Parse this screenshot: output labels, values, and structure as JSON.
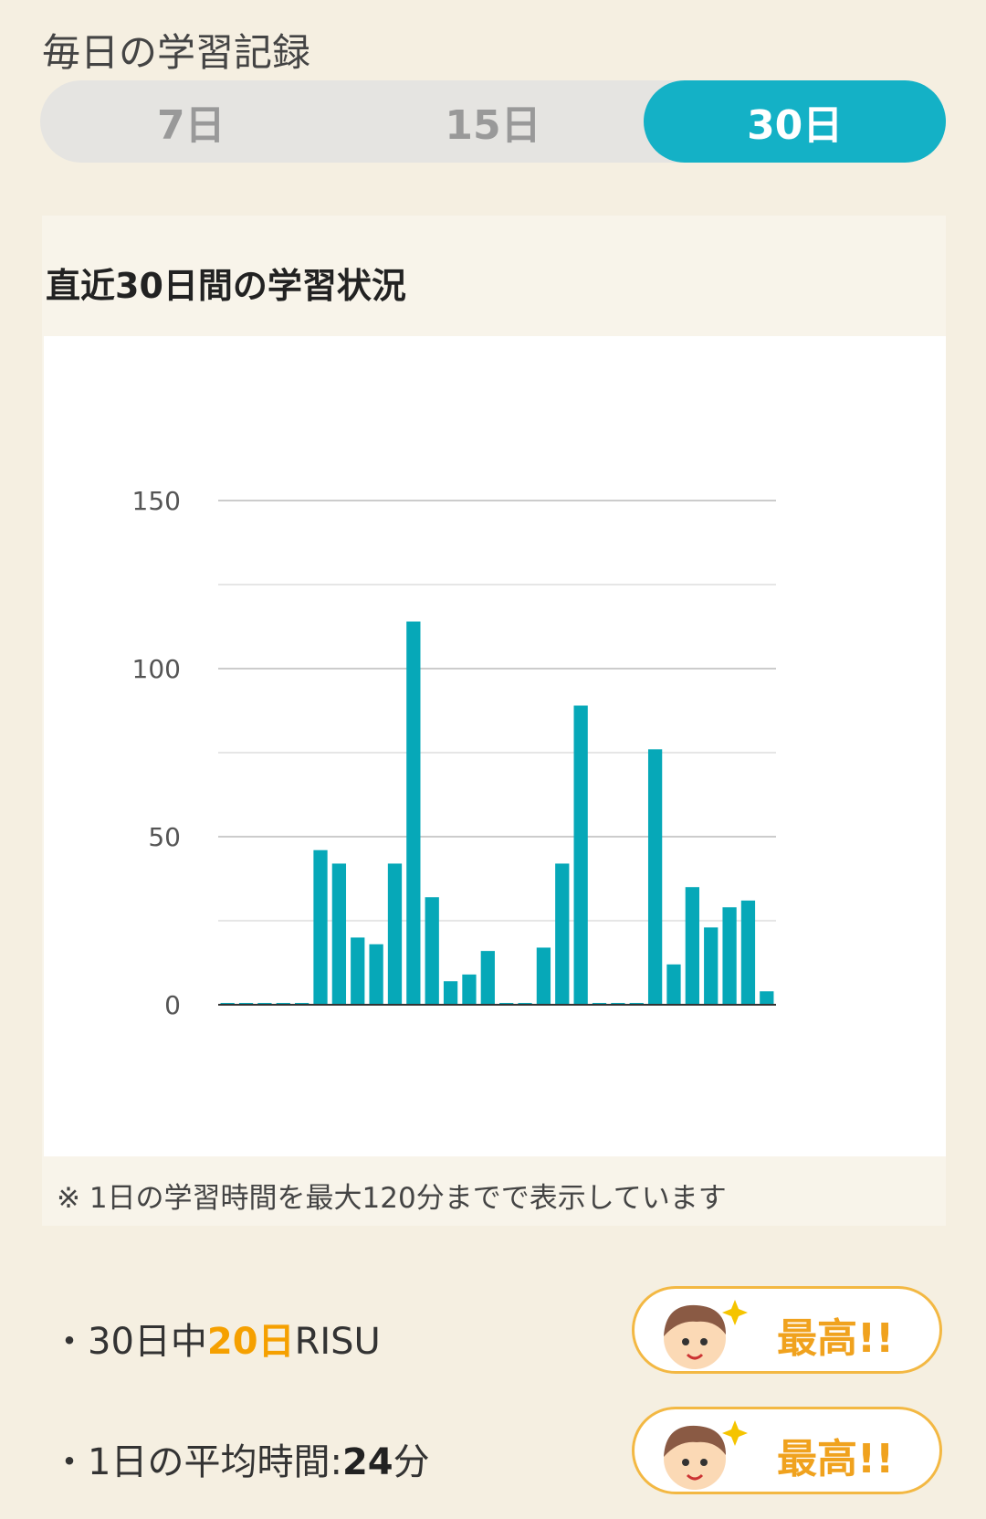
{
  "header": {
    "title": "毎日の学習記録"
  },
  "tabs": [
    {
      "label": "7日",
      "active": false
    },
    {
      "label": "15日",
      "active": false
    },
    {
      "label": "30日",
      "active": true
    }
  ],
  "card": {
    "title": "直近30日間の学習状況",
    "note": "※ 1日の学習時間を最大120分までで表示しています"
  },
  "stats": [
    {
      "prefix": "・30日中",
      "highlight": "20日",
      "suffix": "RISU",
      "badge": "最高!!"
    },
    {
      "prefix": "・1日の平均時間:",
      "highlight": "24",
      "suffix": "分",
      "badge": "最高!!"
    }
  ],
  "colors": {
    "accent": "#14b1c6",
    "bar": "#06a8b8",
    "badge": "#f0a21e"
  },
  "chart_data": {
    "type": "bar",
    "title": "",
    "xlabel": "",
    "ylabel": "",
    "ylim": [
      0,
      150
    ],
    "yticks": [
      "0",
      "50",
      "100",
      "150"
    ],
    "grid": true,
    "values": [
      0,
      0,
      0,
      0,
      0,
      46,
      42,
      20,
      18,
      42,
      114,
      32,
      7,
      9,
      16,
      0,
      0,
      17,
      42,
      89,
      0,
      0,
      0,
      76,
      12,
      35,
      23,
      29,
      31,
      4
    ]
  }
}
